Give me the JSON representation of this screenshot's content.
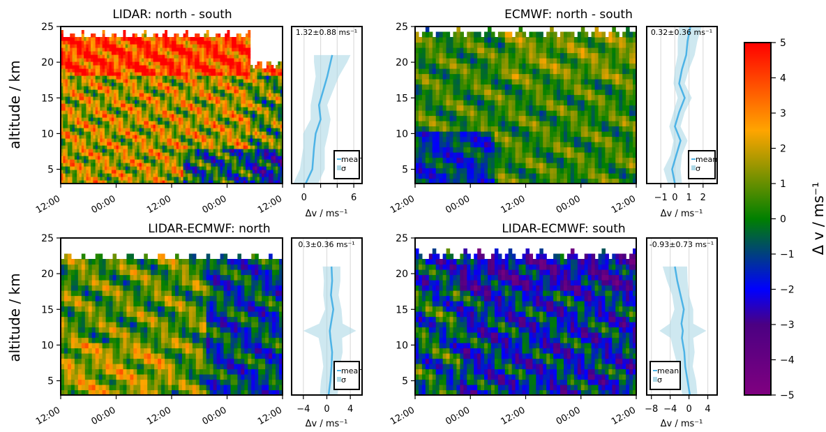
{
  "chart_data": [
    {
      "type": "heatmap",
      "title": "LIDAR: north - south",
      "ylabel": "altitude / km",
      "ylim": [
        3,
        25
      ],
      "yticks": [
        5,
        10,
        15,
        20,
        25
      ],
      "xticks": [
        "12:00",
        "00:00",
        "12:00",
        "00:00",
        "12:00"
      ],
      "top_km": 24.5,
      "sign": 1,
      "profile": {
        "stat": "1.32±0.88 ms⁻¹",
        "xlabel": "Δv / ms⁻¹",
        "xlim": [
          -1.5,
          7
        ],
        "xticks": [
          0,
          2,
          4,
          6
        ],
        "tick_labels": [
          "0",
          "",
          "",
          "6"
        ],
        "mean_label": "mean",
        "sigma_label": "σ",
        "legend": "lower-right",
        "mean_altitude": [
          3,
          5,
          8,
          10,
          12,
          14,
          16,
          18,
          20,
          21
        ],
        "mean_values": [
          0.2,
          1.0,
          1.2,
          1.4,
          2.0,
          1.8,
          2.3,
          2.8,
          3.2,
          3.4
        ],
        "sigma_values": [
          1.5,
          1.5,
          1.3,
          1.5,
          1.2,
          1.0,
          1.2,
          1.4,
          2.0,
          2.2
        ]
      }
    },
    {
      "type": "heatmap",
      "title": "ECMWF: north - south",
      "ylabel": "",
      "ylim": [
        3,
        25
      ],
      "yticks": [
        5,
        10,
        15,
        20,
        25
      ],
      "xticks": [
        "12:00",
        "00:00",
        "12:00",
        "00:00",
        "12:00"
      ],
      "top_km": 25,
      "sign": 1,
      "profile": {
        "stat": "0.32±0.36 ms⁻¹",
        "xlabel": "Δv / ms⁻¹",
        "xlim": [
          -2,
          3
        ],
        "xticks": [
          -1,
          0,
          1,
          2
        ],
        "tick_labels": [
          "−1",
          "0",
          "1",
          "2"
        ],
        "mean_label": "mean",
        "sigma_label": "σ",
        "legend": "lower-right",
        "mean_altitude": [
          3,
          5,
          7,
          9,
          11,
          13,
          15,
          17,
          19,
          21,
          23,
          25
        ],
        "mean_values": [
          0.0,
          -0.2,
          0.1,
          0.4,
          0.0,
          0.3,
          0.7,
          0.3,
          0.5,
          0.8,
          0.9,
          1.1
        ],
        "sigma_values": [
          0.5,
          0.6,
          0.4,
          0.5,
          0.4,
          0.4,
          0.5,
          0.4,
          0.5,
          0.6,
          0.7,
          0.8
        ]
      }
    },
    {
      "type": "heatmap",
      "title": "LIDAR-ECMWF: north",
      "ylabel": "altitude / km",
      "ylim": [
        3,
        25
      ],
      "yticks": [
        5,
        10,
        15,
        20,
        25
      ],
      "xticks": [
        "12:00",
        "00:00",
        "12:00",
        "00:00",
        "12:00"
      ],
      "top_km": 23,
      "sign": 1,
      "profile": {
        "stat": "0.3±0.36 ms⁻¹",
        "xlabel": "Δv / ms⁻¹",
        "xlim": [
          -6,
          6
        ],
        "xticks": [
          -4,
          0,
          4
        ],
        "tick_labels": [
          "−4",
          "0",
          "4"
        ],
        "mean_label": "mean",
        "sigma_label": "σ",
        "legend": "lower-right",
        "mean_altitude": [
          3,
          5,
          7,
          9,
          11,
          12,
          13,
          15,
          17,
          19,
          21
        ],
        "mean_values": [
          0.3,
          0.6,
          0.8,
          0.9,
          0.6,
          0.5,
          0.7,
          1.1,
          0.7,
          0.9,
          0.8
        ],
        "sigma_values": [
          1.5,
          1.6,
          1.4,
          1.8,
          2.0,
          4.5,
          2.0,
          1.4,
          1.3,
          1.4,
          1.5
        ]
      }
    },
    {
      "type": "heatmap",
      "title": "LIDAR-ECMWF: south",
      "ylabel": "",
      "ylim": [
        3,
        25
      ],
      "yticks": [
        5,
        10,
        15,
        20,
        25
      ],
      "xticks": [
        "12:00",
        "00:00",
        "12:00",
        "00:00",
        "12:00"
      ],
      "top_km": 23.5,
      "sign": -1,
      "profile": {
        "stat": "-0.93±0.73 ms⁻¹",
        "xlabel": "Δv / ms⁻¹",
        "xlim": [
          -9,
          6
        ],
        "xticks": [
          -8,
          -4,
          0,
          4
        ],
        "tick_labels": [
          "−8",
          "−4",
          "0",
          "4"
        ],
        "mean_label": "mean",
        "sigma_label": "σ",
        "legend": "lower-left",
        "mean_altitude": [
          3,
          5,
          7,
          9,
          11,
          12,
          13,
          15,
          17,
          19,
          21
        ],
        "mean_values": [
          0.2,
          -0.3,
          -0.8,
          -1.0,
          -1.5,
          -1.3,
          -1.6,
          -1.1,
          -1.8,
          -2.5,
          -3.0
        ],
        "sigma_values": [
          1.6,
          1.8,
          1.6,
          2.2,
          2.4,
          5.0,
          2.5,
          2.0,
          1.8,
          2.2,
          2.6
        ]
      }
    }
  ],
  "colorbar": {
    "label": "Δ v / ms⁻¹",
    "min": -5,
    "max": 5,
    "ticks": [
      -5,
      -4,
      -3,
      -2,
      -1,
      0,
      1,
      2,
      3,
      4,
      5
    ],
    "tick_labels": [
      "−5",
      "−4",
      "−3",
      "−2",
      "−1",
      "0",
      "1",
      "2",
      "3",
      "4",
      "5"
    ],
    "colors": [
      "#800080",
      "#4b0082",
      "#0000ff",
      "#008000",
      "#ffa500",
      "#ff0000"
    ]
  },
  "style": {
    "mean_color": "#4db3e6",
    "sigma_color": "#add8e6",
    "grid_color": "#dddddd"
  }
}
